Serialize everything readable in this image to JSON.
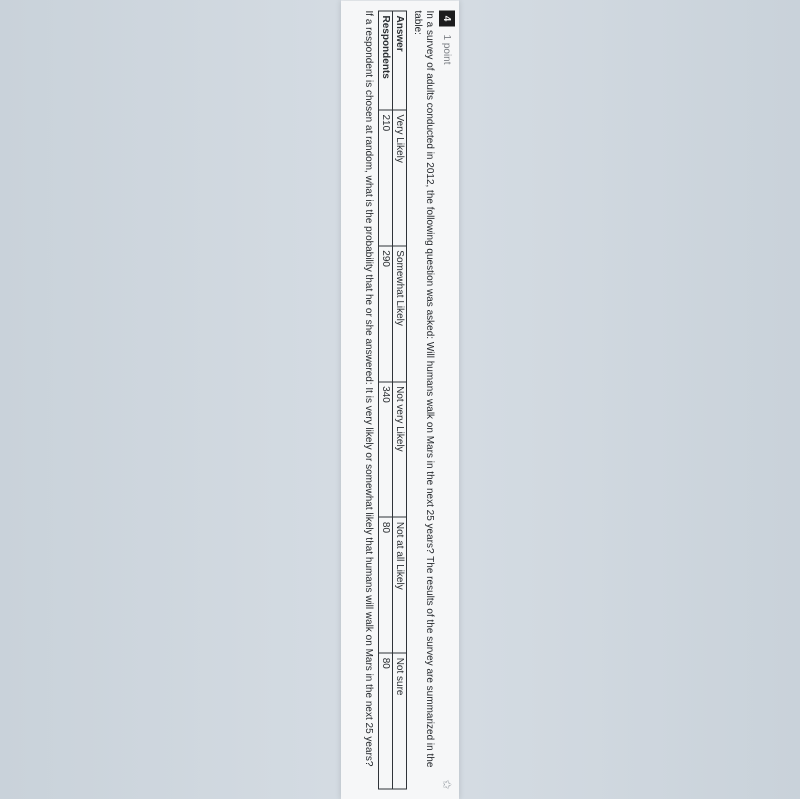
{
  "question": {
    "number": "4",
    "points": "1 point",
    "prompt": "In a survey of adults conducted in 2012, the following question was asked: Will humans walk on Mars in the next 25 years? The results of the survey are summarized in the table:",
    "followup": "If a respondent is chosen at random, what is the probability that he or she answered: It is very likely or somewhat likely that humans will walk on Mars in the next 25 years?"
  },
  "table": {
    "row_labels": [
      "Answer",
      "Respondents"
    ],
    "columns": [
      "Very Likely",
      "Somewhat Likely",
      "Not very Likely",
      "Not at all Likely",
      "Not sure"
    ],
    "values": [
      "210",
      "290",
      "340",
      "80",
      "80"
    ]
  },
  "style": {
    "background_color": "#d4dce3",
    "page_background": "#f6f7f8",
    "qnum_bg": "#1b1c1d",
    "qnum_fg": "#f0f0f0",
    "text_color": "#2b2f33",
    "border_color": "#2f3338",
    "muted_color": "#7b7f84",
    "font_size_pt": 10
  }
}
